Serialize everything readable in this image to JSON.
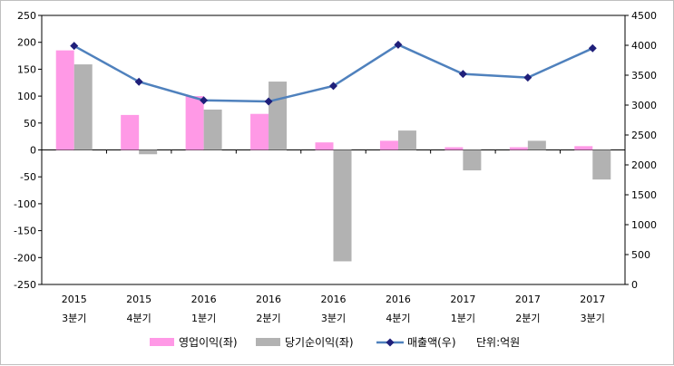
{
  "chart_data": {
    "type": "bar",
    "title": "",
    "categories": [
      {
        "year": "2015",
        "quarter": "3분기"
      },
      {
        "year": "2015",
        "quarter": "4분기"
      },
      {
        "year": "2016",
        "quarter": "1분기"
      },
      {
        "year": "2016",
        "quarter": "2분기"
      },
      {
        "year": "2016",
        "quarter": "3분기"
      },
      {
        "year": "2016",
        "quarter": "4분기"
      },
      {
        "year": "2017",
        "quarter": "1분기"
      },
      {
        "year": "2017",
        "quarter": "2분기"
      },
      {
        "year": "2017",
        "quarter": "3분기"
      }
    ],
    "series": [
      {
        "name": "영업이익(좌)",
        "type": "bar",
        "axis": "left",
        "color": "#ff99e6",
        "values": [
          185,
          65,
          100,
          67,
          14,
          17,
          5,
          5,
          7
        ]
      },
      {
        "name": "당기순이익(좌)",
        "type": "bar",
        "axis": "left",
        "color": "#b2b2b2",
        "values": [
          159,
          -8,
          75,
          127,
          -207,
          36,
          -38,
          17,
          -55
        ]
      },
      {
        "name": "매출액(우)",
        "type": "line",
        "axis": "right",
        "color": "#4f81bd",
        "marker_color": "#1f1f7a",
        "values": [
          3990,
          3390,
          3080,
          3060,
          3320,
          4010,
          3520,
          3460,
          3950
        ]
      }
    ],
    "left_axis": {
      "min": -250,
      "max": 250,
      "step": 50,
      "ticks": [
        "250",
        "200",
        "150",
        "100",
        "50",
        "0",
        "-50",
        "-100",
        "-150",
        "-200",
        "-250"
      ]
    },
    "right_axis": {
      "min": 0,
      "max": 4500,
      "step": 500,
      "ticks": [
        "4500",
        "4000",
        "3500",
        "3000",
        "2500",
        "2000",
        "1500",
        "1000",
        "500",
        "0"
      ]
    },
    "unit_note": "단위:억원",
    "legend_position": "bottom"
  }
}
